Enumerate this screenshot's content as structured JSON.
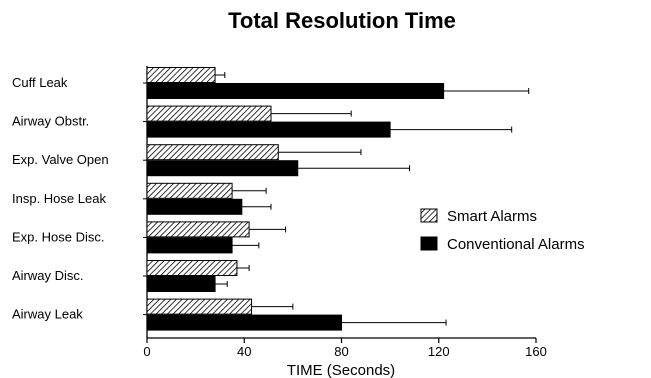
{
  "chart_data": {
    "type": "bar",
    "orientation": "horizontal",
    "title": "Total Resolution Time",
    "xlabel": "TIME (Seconds)",
    "ylabel": "",
    "xlim": [
      0,
      160
    ],
    "xticks": [
      0,
      40,
      80,
      120,
      160
    ],
    "categories": [
      "Cuff Leak",
      "Airway Obstr.",
      "Exp. Valve Open",
      "Insp. Hose Leak",
      "Exp. Hose Disc.",
      "Airway Disc.",
      "Airway Leak"
    ],
    "series": [
      {
        "name": "Smart Alarms",
        "pattern": "hatched",
        "values": [
          28,
          51,
          54,
          35,
          42,
          37,
          43
        ],
        "errors": [
          4,
          33,
          34,
          14,
          15,
          5,
          17
        ]
      },
      {
        "name": "Conventional Alarms",
        "color": "#000000",
        "values": [
          122,
          100,
          62,
          39,
          35,
          28,
          80
        ],
        "errors": [
          35,
          50,
          46,
          12,
          11,
          5,
          43
        ]
      }
    ],
    "legend_position": "right",
    "grid": false
  }
}
